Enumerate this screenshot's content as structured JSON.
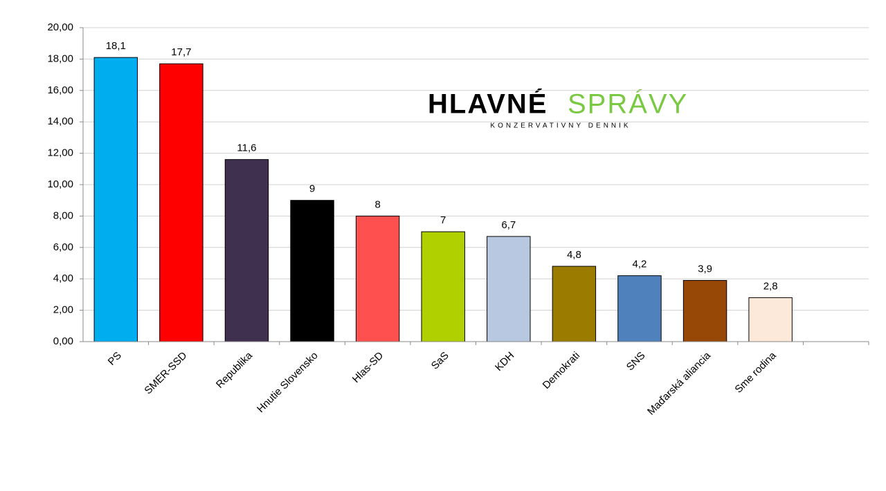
{
  "chart_data": {
    "type": "bar",
    "categories": [
      "PS",
      "SMER-SSD",
      "Republika",
      "Hnutie Slovensko",
      "Hlas-SD",
      "SaS",
      "KDH",
      "Demokrati",
      "SNS",
      "Maďarská aliancia",
      "Sme rodina",
      null
    ],
    "values": [
      18.1,
      17.7,
      11.6,
      9,
      8,
      7,
      6.7,
      4.8,
      4.2,
      3.9,
      2.8,
      null
    ],
    "value_labels": [
      "18,1",
      "17,7",
      "11,6",
      "9",
      "8",
      "7",
      "6,7",
      "4,8",
      "4,2",
      "3,9",
      "2,8",
      null
    ],
    "colors": [
      "#00aeef",
      "#ff0000",
      "#3f3050",
      "#000000",
      "#ff5050",
      "#b0d000",
      "#b8c8e0",
      "#9c7c00",
      "#4f81bd",
      "#974706",
      "#fde9d9",
      null
    ],
    "ylim": [
      0,
      20
    ],
    "yticks": [
      {
        "value": 0,
        "label": "0,00"
      },
      {
        "value": 2,
        "label": "2,00"
      },
      {
        "value": 4,
        "label": "4,00"
      },
      {
        "value": 6,
        "label": "6,00"
      },
      {
        "value": 8,
        "label": "8,00"
      },
      {
        "value": 10,
        "label": "10,00"
      },
      {
        "value": 12,
        "label": "12,00"
      },
      {
        "value": 14,
        "label": "14,00"
      },
      {
        "value": 16,
        "label": "16,00"
      },
      {
        "value": 18,
        "label": "18,00"
      },
      {
        "value": 20,
        "label": "20,00"
      }
    ],
    "grid": true
  },
  "logo": {
    "word1": "HLAVNÉ",
    "word2": "SPRÁVY",
    "tagline": "KONZERVATÍVNY DENNÍK"
  }
}
